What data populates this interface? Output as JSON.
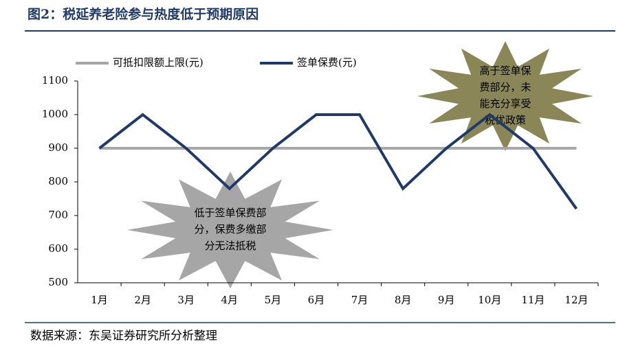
{
  "header": {
    "title": "图2：税延养老险参与热度低于预期原因"
  },
  "chart_data": {
    "type": "line",
    "categories": [
      "1月",
      "2月",
      "3月",
      "4月",
      "5月",
      "6月",
      "7月",
      "8月",
      "9月",
      "10月",
      "11月",
      "12月"
    ],
    "series": [
      {
        "name": "可抵扣限额上限(元)",
        "color": "#a6a6a6",
        "values": [
          900,
          900,
          900,
          900,
          900,
          900,
          900,
          900,
          900,
          900,
          900,
          900
        ]
      },
      {
        "name": "签单保费(元)",
        "color": "#1f3a68",
        "values": [
          900,
          1000,
          900,
          780,
          900,
          1000,
          1000,
          780,
          900,
          1000,
          900,
          720
        ]
      }
    ],
    "ylim": [
      500,
      1100
    ],
    "yticks": [
      500,
      600,
      700,
      800,
      900,
      1000,
      1100
    ],
    "annotations": [
      {
        "lines": [
          "低于签单保费部",
          "分，保费多缴部",
          "分无法抵税"
        ],
        "color": "#a6a6a6"
      },
      {
        "lines": [
          "高于签单保",
          "费部分，未",
          "能充分享受",
          "税优政策"
        ],
        "color": "#8a8657"
      }
    ]
  },
  "footer": {
    "source": "数据来源：东吴证券研究所分析整理"
  }
}
